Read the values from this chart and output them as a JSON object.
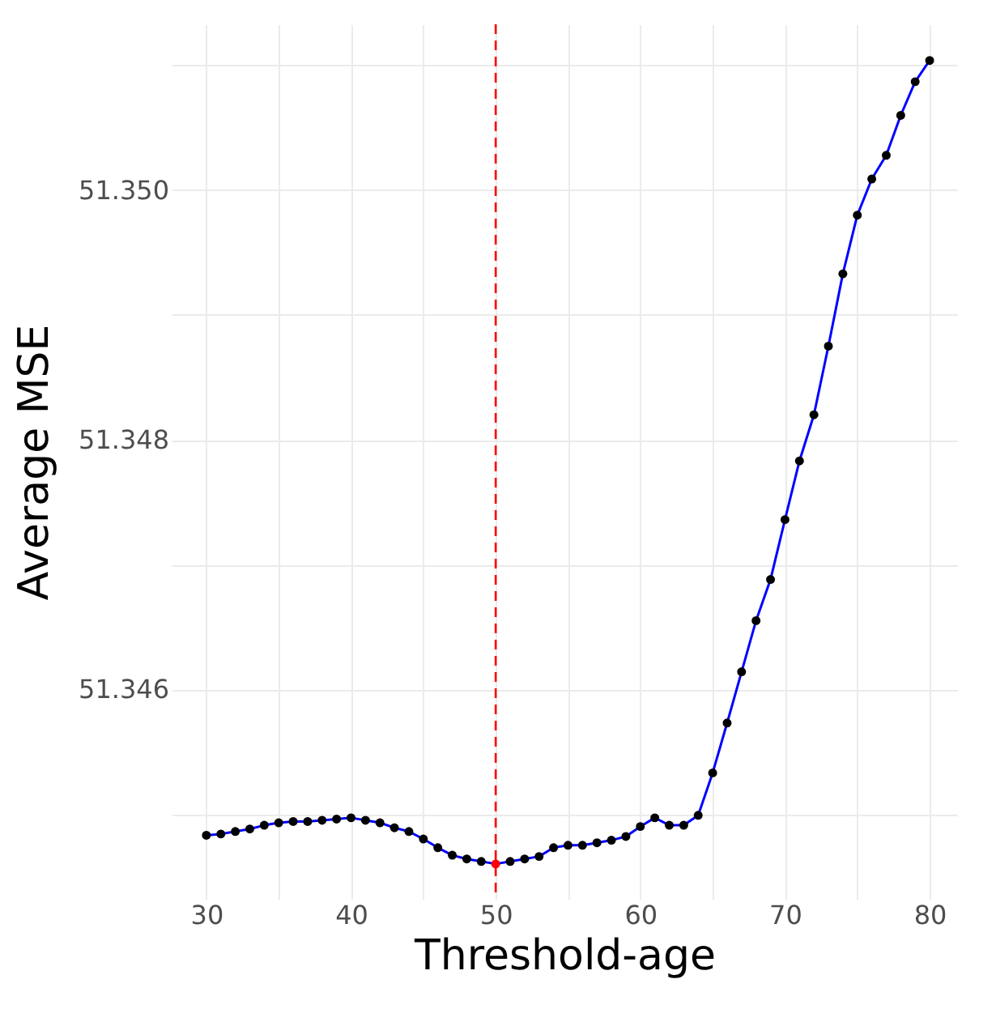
{
  "chart_data": {
    "type": "line",
    "xlabel": "Threshold-age",
    "ylabel": "Average MSE",
    "x": [
      30,
      31,
      32,
      33,
      34,
      35,
      36,
      37,
      38,
      39,
      40,
      41,
      42,
      43,
      44,
      45,
      46,
      47,
      48,
      49,
      50,
      51,
      52,
      53,
      54,
      55,
      56,
      57,
      58,
      59,
      60,
      61,
      62,
      63,
      64,
      65,
      66,
      67,
      68,
      69,
      70,
      71,
      72,
      73,
      74,
      75,
      76,
      77,
      78,
      79,
      80
    ],
    "series": [
      {
        "type": "line",
        "color": "#0000ff",
        "marker": "none",
        "values": [
          51.34483,
          51.34484,
          51.34486,
          51.34488,
          51.34491,
          51.34493,
          51.34494,
          51.34494,
          51.34495,
          51.34496,
          51.34497,
          51.34495,
          51.34493,
          51.34489,
          51.34486,
          51.3448,
          51.34473,
          51.34467,
          51.34464,
          51.34462,
          51.3446,
          51.34462,
          51.34464,
          51.34466,
          51.34473,
          51.34475,
          51.34475,
          51.34477,
          51.34479,
          51.34482,
          51.3449,
          51.34497,
          51.34491,
          51.34491,
          51.34499,
          51.34533,
          51.34573,
          51.34614,
          51.34655,
          51.34688,
          51.34736,
          51.34783,
          51.3482,
          51.34875,
          51.34933,
          51.3498,
          51.35009,
          51.35028,
          51.3506,
          51.35087,
          51.35104
        ]
      },
      {
        "type": "scatter",
        "color": "#000000",
        "marker": "circle",
        "values": [
          51.34483,
          51.34484,
          51.34486,
          51.34488,
          51.34491,
          51.34493,
          51.34494,
          51.34494,
          51.34495,
          51.34496,
          51.34497,
          51.34495,
          51.34493,
          51.34489,
          51.34486,
          51.3448,
          51.34473,
          51.34467,
          51.34464,
          51.34462,
          null,
          51.34462,
          51.34464,
          51.34466,
          51.34473,
          51.34475,
          51.34475,
          51.34477,
          51.34479,
          51.34482,
          51.3449,
          51.34497,
          51.34491,
          51.34491,
          51.34499,
          51.34533,
          51.34573,
          51.34614,
          51.34655,
          51.34688,
          51.34736,
          51.34783,
          51.3482,
          51.34875,
          51.34933,
          51.3498,
          51.35009,
          51.35028,
          51.3506,
          51.35087,
          51.35104
        ]
      },
      {
        "type": "scatter",
        "color": "#ff0000",
        "marker": "circle",
        "x": [
          50
        ],
        "values": [
          51.3446
        ]
      }
    ],
    "ref_lines": [
      {
        "axis": "x",
        "value": 50,
        "color": "#ff0000",
        "line_style": "dashed"
      }
    ],
    "xlim": [
      27.6,
      81.9
    ],
    "ylim": [
      51.34432,
      51.35133
    ],
    "xticks": [
      30,
      {
        "value": 35,
        "label": null
      },
      40,
      {
        "value": 45,
        "label": null
      },
      50,
      {
        "value": 55,
        "label": null
      },
      60,
      {
        "value": 65,
        "label": null
      },
      70,
      {
        "value": 75,
        "label": null
      },
      80
    ],
    "yticks": [
      {
        "value": 51.345,
        "label": null
      },
      {
        "value": 51.346,
        "label": "51.346"
      },
      {
        "value": 51.347,
        "label": null
      },
      {
        "value": 51.348,
        "label": "51.348"
      },
      {
        "value": 51.349,
        "label": null
      },
      {
        "value": 51.35,
        "label": "51.350"
      },
      {
        "value": 51.351,
        "label": null
      }
    ],
    "grid": true
  }
}
